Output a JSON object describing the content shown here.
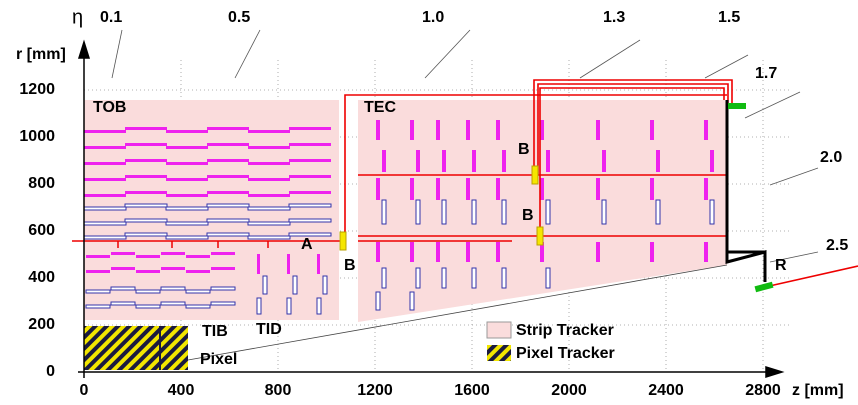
{
  "axes": {
    "y_label": "r [mm]",
    "x_label": "z [mm]",
    "xticks": [
      0,
      400,
      800,
      1200,
      1600,
      2000,
      2400,
      2800
    ],
    "yticks": [
      0,
      200,
      400,
      600,
      800,
      1000,
      1200
    ]
  },
  "eta": {
    "symbol": "η",
    "labels": [
      "0.1",
      "0.5",
      "1.0",
      "1.3",
      "1.5",
      "1.7",
      "2.0",
      "2.5"
    ]
  },
  "labels": {
    "tob": "TOB",
    "tec": "TEC",
    "tib": "TIB",
    "tid": "TID",
    "pixel": "Pixel",
    "a": "A",
    "b": [
      "B",
      "B",
      "B"
    ],
    "r": "R"
  },
  "legend": [
    "Strip Tracker",
    "Pixel Tracker"
  ]
}
